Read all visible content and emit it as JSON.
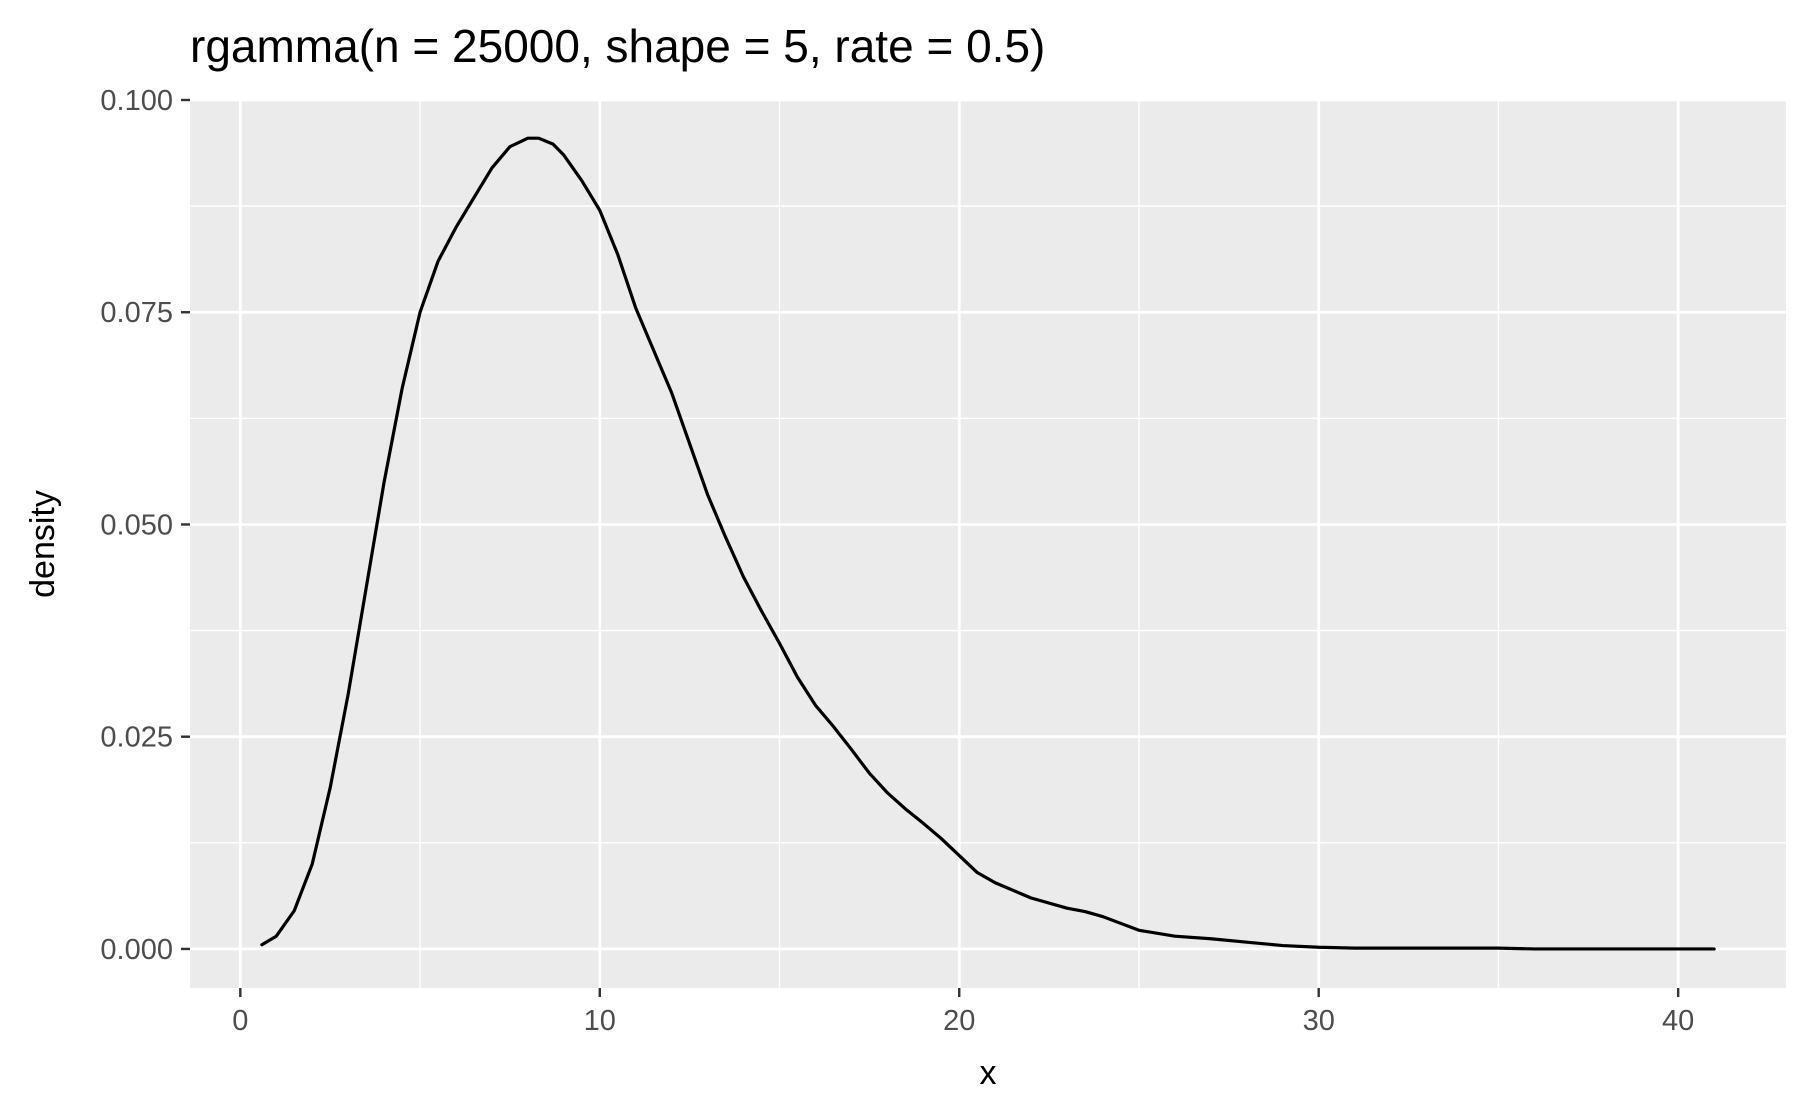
{
  "chart_data": {
    "type": "line",
    "title": "rgamma(n = 25000, shape = 5, rate = 0.5)",
    "xlabel": "x",
    "ylabel": "density",
    "xlim": [
      -1.4,
      43.0
    ],
    "ylim": [
      -0.0046,
      0.1
    ],
    "x_ticks": [
      0,
      10,
      20,
      30,
      40
    ],
    "x_tick_labels": [
      "0",
      "10",
      "20",
      "30",
      "40"
    ],
    "x_minor": [
      5,
      15,
      25,
      35
    ],
    "y_ticks": [
      0,
      0.025,
      0.05,
      0.075,
      0.1
    ],
    "y_tick_labels": [
      "0.000",
      "0.025",
      "0.050",
      "0.075",
      "0.100"
    ],
    "y_minor": [
      0.0125,
      0.0375,
      0.0625,
      0.0875
    ],
    "grid": true,
    "background": "#ebebeb",
    "grid_color": "#ffffff",
    "line_color": "#000000",
    "series": [
      {
        "x": [
          0.6,
          1.0,
          1.5,
          2.0,
          2.5,
          3.0,
          3.5,
          4.0,
          4.5,
          5.0,
          5.5,
          6.0,
          6.5,
          7.0,
          7.5,
          8.0,
          8.3,
          8.7,
          9.0,
          9.5,
          10.0,
          10.5,
          11.0,
          11.5,
          12.0,
          12.5,
          13.0,
          13.5,
          14.0,
          14.5,
          15.0,
          15.5,
          16.0,
          16.5,
          17.0,
          17.5,
          18.0,
          18.5,
          19.0,
          19.5,
          20.0,
          20.5,
          21.0,
          22.0,
          23.0,
          23.5,
          24.0,
          25.0,
          26.0,
          27.0,
          28.0,
          29.0,
          30.0,
          31.0,
          32.0,
          33.0,
          34.0,
          35.0,
          36.0,
          37.0,
          38.0,
          39.0,
          40.0,
          41.0
        ],
        "y": [
          0.0005,
          0.0015,
          0.0045,
          0.01,
          0.019,
          0.03,
          0.0425,
          0.055,
          0.066,
          0.075,
          0.081,
          0.085,
          0.0885,
          0.092,
          0.0945,
          0.0955,
          0.0955,
          0.0948,
          0.0935,
          0.0905,
          0.087,
          0.0818,
          0.0755,
          0.0705,
          0.0655,
          0.0595,
          0.0535,
          0.0485,
          0.0438,
          0.0398,
          0.036,
          0.032,
          0.0287,
          0.0262,
          0.0235,
          0.0207,
          0.0184,
          0.0165,
          0.0148,
          0.013,
          0.011,
          0.009,
          0.0078,
          0.006,
          0.0048,
          0.0044,
          0.0038,
          0.0022,
          0.0015,
          0.0012,
          0.0008,
          0.0004,
          0.0002,
          0.0001,
          0.0001,
          0.0001,
          0.0001,
          0.0001,
          0.0,
          0.0,
          0.0,
          0.0,
          0.0,
          0.0
        ]
      }
    ]
  }
}
